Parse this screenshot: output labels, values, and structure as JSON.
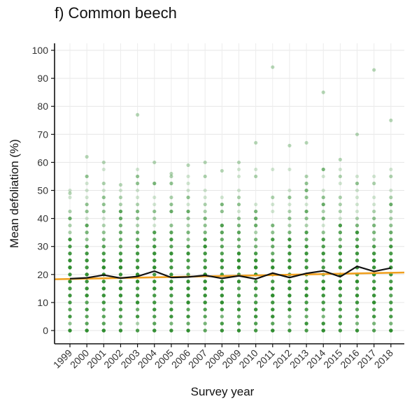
{
  "chart_data": {
    "type": "scatter",
    "title": "f) Common beech",
    "xlabel": "Survey year",
    "ylabel": "Mean defoliation (%)",
    "ylim": [
      0,
      100
    ],
    "yticks": [
      0,
      10,
      20,
      30,
      40,
      50,
      60,
      70,
      80,
      90,
      100
    ],
    "categories": [
      "1999",
      "2000",
      "2001",
      "2002",
      "2003",
      "2004",
      "2005",
      "2006",
      "2007",
      "2008",
      "2009",
      "2010",
      "2011",
      "2012",
      "2013",
      "2014",
      "2015",
      "2016",
      "2017",
      "2018"
    ],
    "grid": true,
    "colors": {
      "points": "#2e8b2e",
      "mean_line": "#111111",
      "trend_line": "#f0a020"
    },
    "series": [
      {
        "kind": "points",
        "range_min": [
          0,
          0,
          0,
          0,
          0,
          0,
          0,
          0,
          0,
          0,
          0,
          0,
          0,
          0,
          0,
          0,
          0,
          0,
          0,
          0
        ],
        "range_max": [
          49,
          62,
          60,
          52,
          77,
          60,
          56,
          59,
          60,
          57,
          60,
          67,
          94,
          66,
          67,
          85,
          61,
          70,
          93,
          75
        ]
      },
      {
        "kind": "mean",
        "values": [
          18.5,
          18.8,
          19.8,
          18.7,
          19.3,
          21.2,
          18.9,
          19.1,
          19.7,
          18.6,
          19.5,
          18.4,
          20.5,
          18.9,
          20.4,
          21.3,
          19.2,
          22.9,
          21.1,
          22.3
        ]
      },
      {
        "kind": "trend",
        "start": 18.3,
        "end": 20.7
      }
    ]
  }
}
